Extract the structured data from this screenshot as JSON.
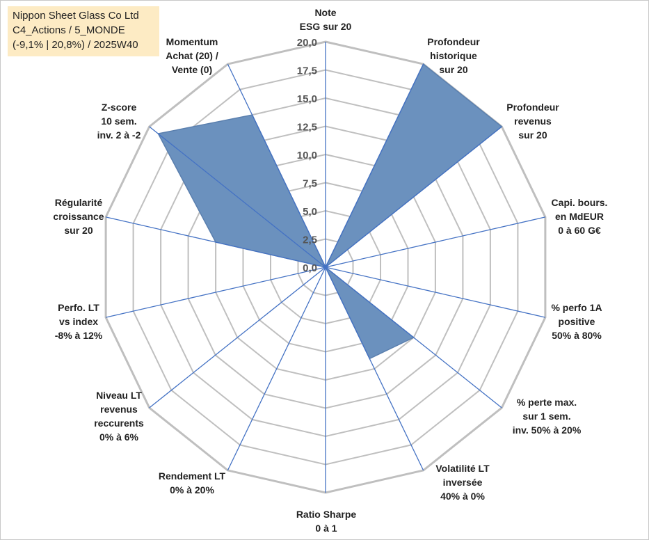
{
  "info_box": {
    "company": "Nippon Sheet Glass Co Ltd",
    "category": "C4_Actions / 5_MONDE",
    "range_week": "(-9,1% | 20,8%) / 2025W40"
  },
  "chart_data": {
    "type": "radar",
    "title": "Nippon Sheet Glass Co Ltd",
    "rmin": 0,
    "rmax": 20,
    "tick_values": [
      0,
      2.5,
      5,
      7.5,
      10,
      12.5,
      15,
      17.5,
      20
    ],
    "tick_labels": [
      "0,0",
      "2,5",
      "5,0",
      "7,5",
      "10,0",
      "12,5",
      "15,0",
      "17,5",
      "20,0"
    ],
    "grid": true,
    "axes": [
      {
        "label": [
          "Note",
          "ESG sur 20"
        ],
        "value": 0
      },
      {
        "label": [
          "Profondeur",
          "historique",
          "sur 20"
        ],
        "value": 20
      },
      {
        "label": [
          "Profondeur",
          "revenus",
          "sur 20"
        ],
        "value": 20
      },
      {
        "label": [
          "Capi. bours.",
          "en MdEUR",
          "0 à 60 G€"
        ],
        "value": 0
      },
      {
        "label": [
          "% perfo 1A",
          "positive",
          "50% à 80%"
        ],
        "value": 0
      },
      {
        "label": [
          "% perte max.",
          "sur 1 sem.",
          "inv. 50% à 20%"
        ],
        "value": 10
      },
      {
        "label": [
          "Volatilité LT",
          "inversée",
          "40% à 0%"
        ],
        "value": 9
      },
      {
        "label": [
          "Ratio Sharpe",
          "0 à 1"
        ],
        "value": 0
      },
      {
        "label": [
          "Rendement LT",
          "0% à 20%"
        ],
        "value": 0
      },
      {
        "label": [
          "Niveau LT",
          "revenus",
          "reccurents",
          "0% à 6%"
        ],
        "value": 0
      },
      {
        "label": [
          "Perfo. LT",
          "vs index",
          "-8% à 12%"
        ],
        "value": 0
      },
      {
        "label": [
          "Régularité",
          "croissance",
          "sur 20"
        ],
        "value": 10
      },
      {
        "label": [
          "Z-score",
          "10 sem.",
          "inv. 2 à -2"
        ],
        "value": 19
      },
      {
        "label": [
          "Momentum",
          "Achat (20) /",
          "Vente (0)"
        ],
        "value": 15
      }
    ],
    "colors": {
      "fill": "#6b91be",
      "stroke": "#5a7fae",
      "spoke": "#4472c4",
      "grid": "#bfbfbf"
    }
  }
}
